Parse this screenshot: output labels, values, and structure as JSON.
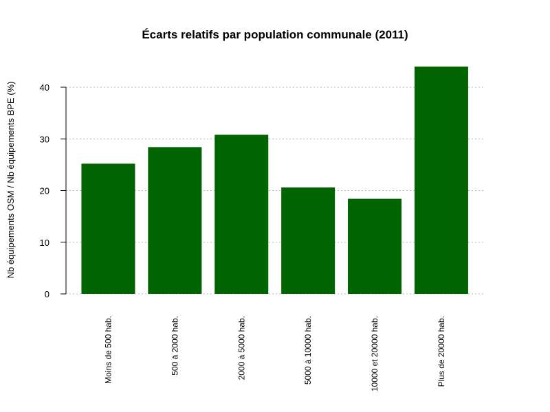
{
  "chart_data": {
    "type": "bar",
    "title": "Écarts relatifs par population communale (2011)",
    "xlabel": "",
    "ylabel": "Nb équipements OSM / Nb équipements BPE (%)",
    "categories": [
      "Moins de 500 hab.",
      "500 à 2000 hab.",
      "2000 à 5000 hab.",
      "5000 à 10000 hab.",
      "10000 et 20000 hab.",
      "Plus de 20000 hab."
    ],
    "values": [
      25.2,
      28.4,
      30.8,
      20.6,
      18.4,
      44.0
    ],
    "ylim": [
      0,
      44
    ],
    "yticks": [
      0,
      10,
      20,
      30,
      40
    ],
    "grid": true,
    "bar_color": "#006400"
  }
}
